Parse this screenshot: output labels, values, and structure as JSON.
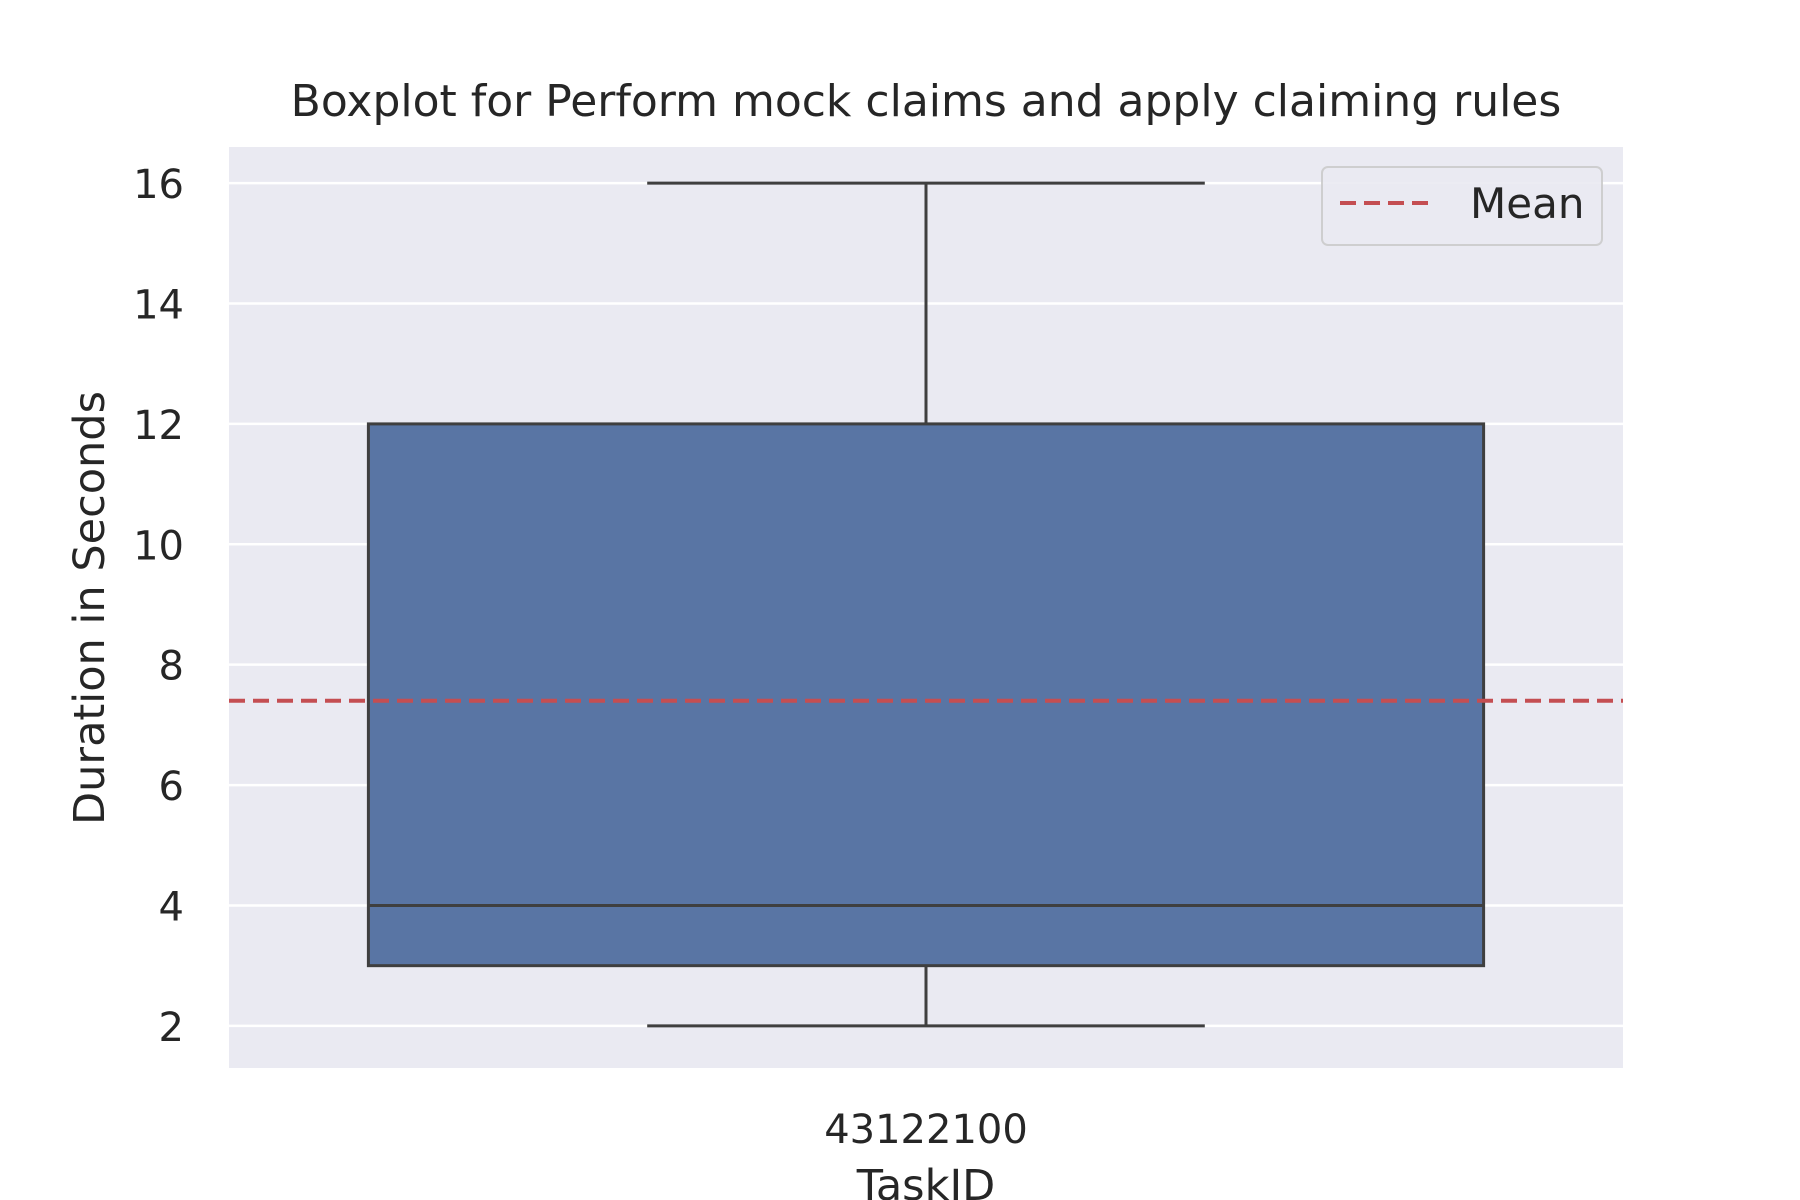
{
  "chart_data": {
    "type": "box",
    "title": "Boxplot for Perform mock claims and apply claiming rules",
    "xlabel": "TaskID",
    "ylabel": "Duration in Seconds",
    "categories": [
      "43122100"
    ],
    "boxes": [
      {
        "category": "43122100",
        "whisker_low": 2,
        "q1": 3,
        "median": 4,
        "q3": 12,
        "whisker_high": 16
      }
    ],
    "mean": 7.4,
    "ylim": [
      1.3,
      16.6
    ],
    "yticks": [
      2,
      4,
      6,
      8,
      10,
      12,
      14,
      16
    ],
    "grid": true,
    "legend": {
      "entries": [
        "Mean"
      ],
      "placement": "top-right"
    },
    "colors": {
      "box": "#5975a4",
      "mean_line": "#c44e52",
      "background": "#eaeaf2",
      "grid": "#ffffff",
      "edge": "#3f3f3f"
    }
  }
}
